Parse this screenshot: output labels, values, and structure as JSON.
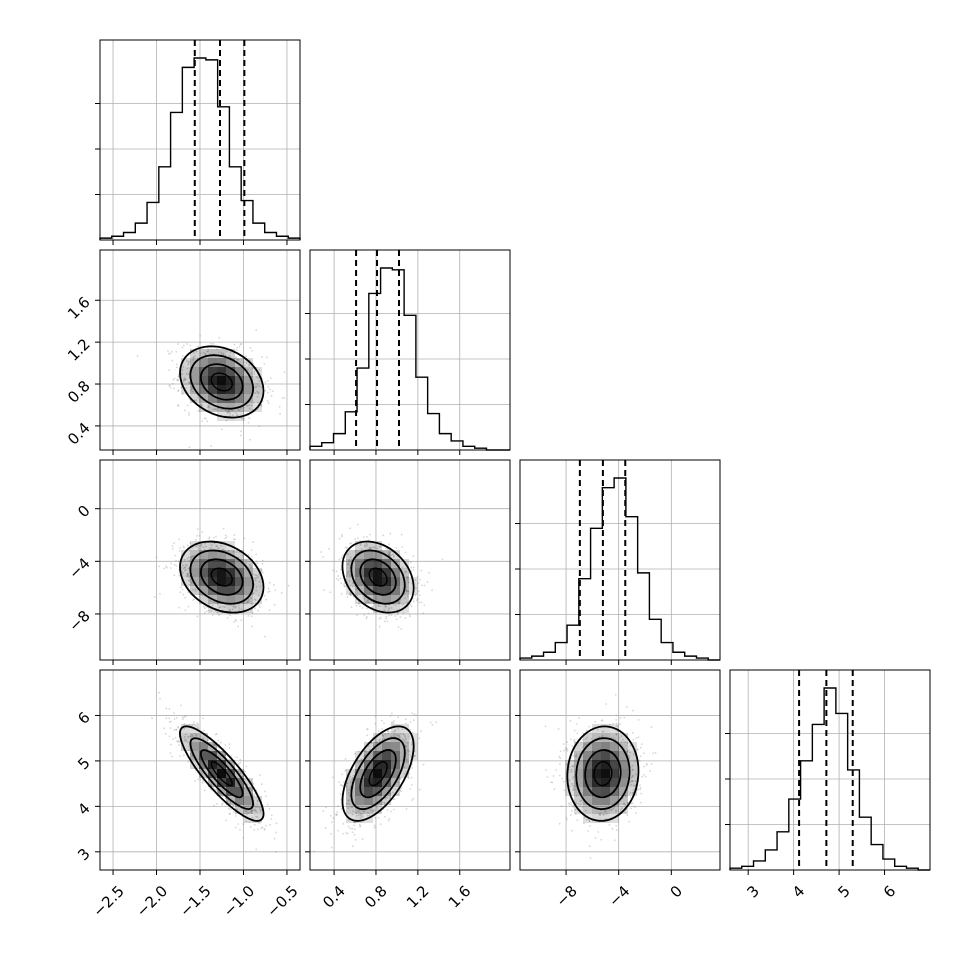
{
  "chart_data": {
    "type": "corner",
    "title": "",
    "params": [
      {
        "xlim": [
          -2.65,
          -0.35
        ],
        "ticks": [
          -2.5,
          -2.0,
          -1.5,
          -1.0,
          -0.5
        ],
        "tick_labels": [
          "−2.5",
          "−2.0",
          "−1.5",
          "−1.0",
          "−0.5"
        ],
        "quantiles": [
          -1.56,
          -1.27,
          -0.99
        ]
      },
      {
        "xlim": [
          0.17,
          2.08
        ],
        "ticks": [
          0.4,
          0.8,
          1.2,
          1.6
        ],
        "tick_labels": [
          "0.4",
          "0.8",
          "1.2",
          "1.6"
        ],
        "quantiles": [
          0.61,
          0.81,
          1.02
        ]
      },
      {
        "xlim": [
          -11.5,
          3.7
        ],
        "ticks": [
          -8,
          -4,
          0
        ],
        "tick_labels": [
          "−8",
          "−4",
          "0"
        ],
        "quantiles": [
          -6.95,
          -5.2,
          -3.5
        ]
      },
      {
        "xlim": [
          2.6,
          7.0
        ],
        "ticks": [
          3,
          4,
          5,
          6
        ],
        "tick_labels": [
          "3",
          "4",
          "5",
          "6"
        ],
        "quantiles": [
          4.12,
          4.72,
          5.3
        ]
      }
    ],
    "hist1d": [
      {
        "edges_range": [
          -2.65,
          -0.35
        ],
        "counts": [
          1,
          2,
          4,
          9,
          20,
          39,
          68,
          92,
          97,
          96,
          71,
          39,
          21,
          9,
          4,
          2,
          1
        ]
      },
      {
        "edges_range": [
          0.17,
          2.08
        ],
        "counts": [
          2,
          4,
          9,
          21,
          45,
          86,
          100,
          99,
          74,
          40,
          20,
          9,
          5,
          2,
          1,
          0,
          0
        ]
      },
      {
        "edges_range": [
          -11.5,
          3.7
        ],
        "counts": [
          1,
          2,
          4,
          9,
          18,
          42,
          68,
          89,
          94,
          74,
          45,
          21,
          9,
          4,
          2,
          1,
          0
        ]
      },
      {
        "edges_range": [
          2.6,
          7.0
        ],
        "counts": [
          1,
          2,
          5,
          11,
          21,
          39,
          60,
          80,
          100,
          86,
          55,
          29,
          14,
          6,
          2,
          1,
          0
        ]
      }
    ],
    "pairs": [
      {
        "row": 1,
        "col": 0,
        "mean": [
          -1.25,
          0.82
        ],
        "sd": [
          0.24,
          0.17
        ],
        "rho": -0.25
      },
      {
        "row": 2,
        "col": 0,
        "mean": [
          -1.25,
          -5.2
        ],
        "sd": [
          0.24,
          1.35
        ],
        "rho": -0.28
      },
      {
        "row": 2,
        "col": 1,
        "mean": [
          0.82,
          -5.2
        ],
        "sd": [
          0.17,
          1.35
        ],
        "rho": -0.3
      },
      {
        "row": 3,
        "col": 0,
        "mean": [
          -1.25,
          4.72
        ],
        "sd": [
          0.24,
          0.52
        ],
        "rho": -0.85
      },
      {
        "row": 3,
        "col": 1,
        "mean": [
          0.82,
          4.72
        ],
        "sd": [
          0.17,
          0.52
        ],
        "rho": 0.58
      },
      {
        "row": 3,
        "col": 2,
        "mean": [
          -5.2,
          4.72
        ],
        "sd": [
          1.35,
          0.52
        ],
        "rho": 0.05
      }
    ],
    "y_axes": [
      {
        "row": 1,
        "ylim": [
          0.17,
          2.08
        ],
        "ticks": [
          0.4,
          0.8,
          1.2,
          1.6
        ],
        "tick_labels": [
          "0.4",
          "0.8",
          "1.2",
          "1.6"
        ]
      },
      {
        "row": 2,
        "ylim": [
          -11.5,
          3.7
        ],
        "ticks": [
          -8,
          -4,
          0
        ],
        "tick_labels": [
          "−8",
          "−4",
          "0"
        ]
      },
      {
        "row": 3,
        "ylim": [
          2.6,
          7.0
        ],
        "ticks": [
          3,
          4,
          5,
          6
        ],
        "tick_labels": [
          "3",
          "4",
          "5",
          "6"
        ]
      }
    ],
    "contour_levels_sigma": [
      0.5,
      1.0,
      1.5,
      2.0
    ],
    "grid": true,
    "colors": {
      "line": "#000000",
      "grid": "#b0b0b0",
      "points": "#8c8c8c",
      "shade": "#000000"
    }
  }
}
